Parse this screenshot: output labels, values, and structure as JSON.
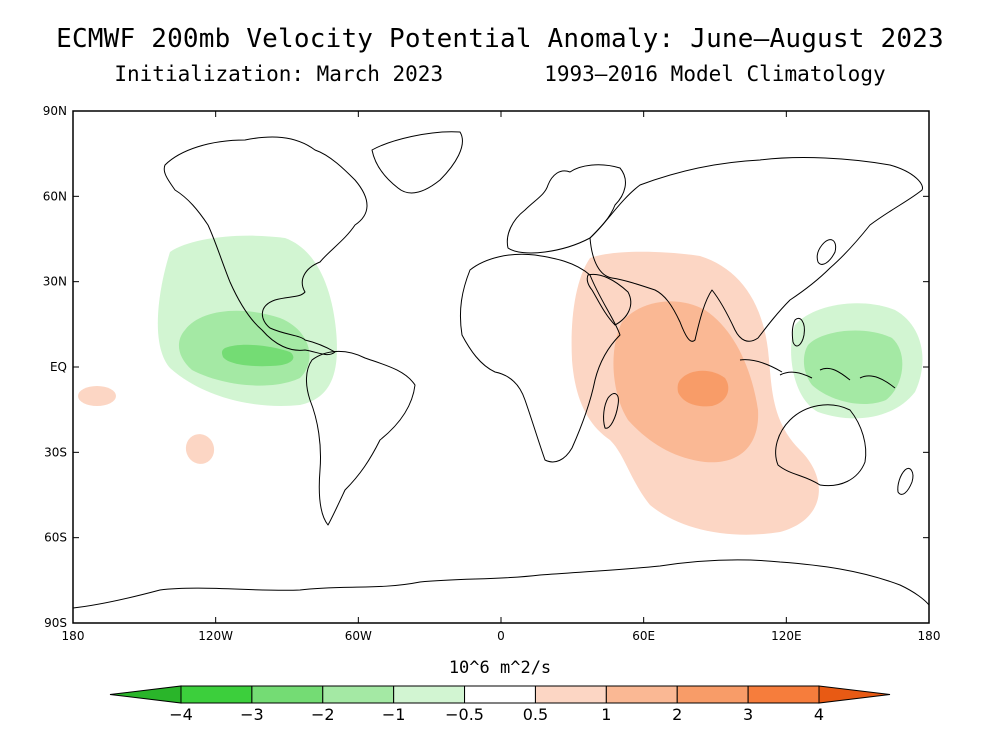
{
  "title": "ECMWF 200mb Velocity Potential Anomaly: June—August 2023",
  "subtitle": "Initialization: March 2023        1993—2016 Model Climatology",
  "map": {
    "projection": "equirectangular",
    "lat_ticks": [
      "90N",
      "60N",
      "30N",
      "EQ",
      "30S",
      "60S",
      "90S"
    ],
    "lon_ticks": [
      "180",
      "120W",
      "60W",
      "0",
      "60E",
      "120E",
      "180"
    ]
  },
  "colorbar": {
    "units": "10^6 m^2/s",
    "labels": [
      "-4",
      "-3",
      "-2",
      "-1",
      "-0.5",
      "0.5",
      "1",
      "2",
      "3",
      "4"
    ],
    "colors": [
      "#2ab52a",
      "#3ccf3c",
      "#74dc74",
      "#a4e9a4",
      "#d2f5d2",
      "#ffffff",
      "#fcd6c4",
      "#fab894",
      "#f89c68",
      "#f67d3c",
      "#e85a14"
    ]
  },
  "anomalies": [
    {
      "region": "Eastern Pacific / Central America",
      "sign": "negative",
      "levels": [
        "-0.5",
        "-1",
        "-2"
      ]
    },
    {
      "region": "Western Pacific / Maritime Continent",
      "sign": "negative",
      "levels": [
        "-0.5",
        "-1"
      ]
    },
    {
      "region": "Indian Ocean / South Asia",
      "sign": "positive",
      "levels": [
        "0.5",
        "1",
        "2"
      ]
    },
    {
      "region": "South Pacific (small)",
      "sign": "positive",
      "levels": [
        "0.5"
      ]
    }
  ]
}
